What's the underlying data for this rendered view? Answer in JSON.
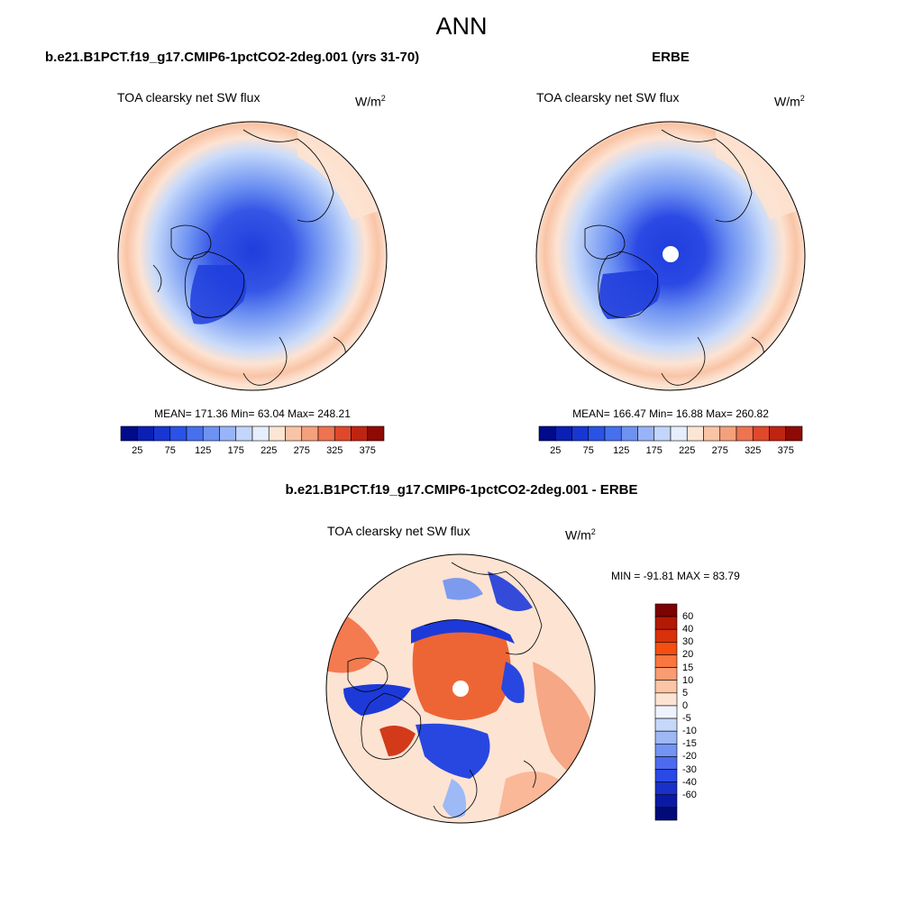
{
  "page": {
    "title": "ANN"
  },
  "panels": [
    {
      "case_title": "b.e21.B1PCT.f19_g17.CMIP6-1pctCO2-2deg.001 (yrs 31-70)",
      "variable": "TOA clearsky net SW flux",
      "units": "W/m",
      "units_sup": "2",
      "stats": "MEAN= 171.36  Min=  63.04  Max= 248.21"
    },
    {
      "case_title": "ERBE",
      "variable": "TOA clearsky net SW flux",
      "units": "W/m",
      "units_sup": "2",
      "stats": "MEAN= 166.47  Min=  16.88  Max= 260.82"
    },
    {
      "case_title": "b.e21.B1PCT.f19_g17.CMIP6-1pctCO2-2deg.001 - ERBE",
      "variable": "TOA clearsky net SW flux",
      "units": "W/m",
      "units_sup": "2",
      "stats": "MIN = -91.81 MAX =  83.79"
    }
  ],
  "colorbars": {
    "top": {
      "colors": [
        "#000a8a",
        "#0b1fb4",
        "#1836d2",
        "#2a52e6",
        "#4670ee",
        "#6e92f2",
        "#99b4f6",
        "#c3d5fa",
        "#e6eefc",
        "#fde5d4",
        "#f9c4a6",
        "#f5a07c",
        "#ee7350",
        "#e0482b",
        "#bf2412",
        "#8f0a05"
      ],
      "tick_labels": [
        "25",
        "75",
        "125",
        "175",
        "225",
        "275",
        "325",
        "375"
      ]
    },
    "diff": {
      "colors": [
        "#7d0303",
        "#b21a05",
        "#d9310b",
        "#f54d12",
        "#f9763f",
        "#f99c72",
        "#fbc6a6",
        "#fde4d2",
        "#eef3fd",
        "#c6d8fa",
        "#9eb8f6",
        "#7394f2",
        "#4d6bef",
        "#2b49e4",
        "#1931c8",
        "#0b1aa4",
        "#020a79"
      ],
      "tick_labels": [
        "60",
        "40",
        "30",
        "20",
        "15",
        "10",
        "5",
        "0",
        "-5",
        "-10",
        "-15",
        "-20",
        "-30",
        "-40",
        "-60"
      ]
    }
  },
  "colors": {
    "ocean_outer": "#fde3d2",
    "ring_orange": "#f9c4a6",
    "light_blue": "#c9dbfa",
    "mid_blue": "#6e92f2",
    "deep_blue": "#1f3ddc",
    "diff_red": "#e9502a",
    "diff_blue": "#1d3ad8"
  }
}
